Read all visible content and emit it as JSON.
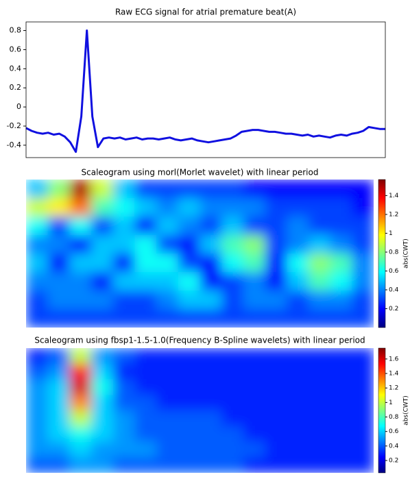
{
  "chart_data": [
    {
      "type": "line",
      "title": "Raw ECG signal for atrial premature beat(A)",
      "color": "#1010e0",
      "values": [
        -0.22,
        -0.25,
        -0.27,
        -0.28,
        -0.27,
        -0.29,
        -0.28,
        -0.31,
        -0.37,
        -0.47,
        -0.1,
        0.8,
        -0.1,
        -0.42,
        -0.33,
        -0.32,
        -0.33,
        -0.32,
        -0.34,
        -0.33,
        -0.32,
        -0.34,
        -0.33,
        -0.33,
        -0.34,
        -0.33,
        -0.32,
        -0.34,
        -0.35,
        -0.34,
        -0.33,
        -0.35,
        -0.36,
        -0.37,
        -0.36,
        -0.35,
        -0.34,
        -0.33,
        -0.3,
        -0.26,
        -0.25,
        -0.24,
        -0.24,
        -0.25,
        -0.26,
        -0.26,
        -0.27,
        -0.28,
        -0.28,
        -0.29,
        -0.3,
        -0.29,
        -0.31,
        -0.3,
        -0.31,
        -0.32,
        -0.3,
        -0.29,
        -0.3,
        -0.28,
        -0.27,
        -0.25,
        -0.21,
        -0.22,
        -0.23,
        -0.23
      ],
      "ylim": [
        -0.53,
        0.89
      ],
      "yticks": [
        -0.4,
        -0.2,
        0.0,
        0.2,
        0.4,
        0.6,
        0.8
      ]
    },
    {
      "type": "heatmap",
      "title": "Scaleogram using morl(Morlet wavelet) with linear period",
      "colormap": "jet",
      "colorbar_label": "abs(CWT)",
      "clim": [
        0,
        1.57
      ],
      "cticks": [
        0.2,
        0.4,
        0.6,
        0.8,
        1.0,
        1.2,
        1.4
      ],
      "z": [
        [
          0.5,
          0.8,
          1.5,
          0.9,
          0.5,
          0.3,
          0.3,
          0.3,
          0.3,
          0.3,
          0.2,
          0.2,
          0.2,
          0.2,
          0.2,
          0.2
        ],
        [
          0.9,
          1.0,
          1.2,
          0.7,
          0.6,
          0.5,
          0.4,
          0.5,
          0.4,
          0.4,
          0.4,
          0.3,
          0.3,
          0.3,
          0.3,
          0.2
        ],
        [
          0.6,
          0.3,
          0.6,
          0.3,
          0.5,
          0.2,
          0.5,
          0.4,
          0.3,
          0.5,
          0.3,
          0.3,
          0.4,
          0.3,
          0.3,
          0.3
        ],
        [
          0.4,
          0.4,
          0.2,
          0.5,
          0.5,
          0.6,
          0.3,
          0.2,
          0.5,
          0.7,
          0.8,
          0.3,
          0.4,
          0.5,
          0.4,
          0.3
        ],
        [
          0.5,
          0.2,
          0.5,
          0.5,
          0.2,
          0.6,
          0.6,
          0.3,
          0.2,
          0.6,
          0.7,
          0.2,
          0.6,
          0.8,
          0.7,
          0.4
        ],
        [
          0.4,
          0.4,
          0.4,
          0.2,
          0.5,
          0.5,
          0.5,
          0.6,
          0.2,
          0.3,
          0.4,
          0.2,
          0.5,
          0.7,
          0.6,
          0.4
        ],
        [
          0.3,
          0.4,
          0.4,
          0.4,
          0.3,
          0.3,
          0.4,
          0.5,
          0.5,
          0.3,
          0.4,
          0.4,
          0.3,
          0.4,
          0.4,
          0.3
        ],
        [
          0.3,
          0.3,
          0.3,
          0.3,
          0.3,
          0.3,
          0.3,
          0.3,
          0.3,
          0.3,
          0.3,
          0.3,
          0.3,
          0.3,
          0.3,
          0.3
        ]
      ]
    },
    {
      "type": "heatmap",
      "title": "Scaleogram using fbsp1-1.5-1.0(Frequency B-Spline wavelets) with linear period",
      "colormap": "jet",
      "colorbar_label": "abs(CWT)",
      "clim": [
        0.03,
        1.75
      ],
      "cticks": [
        0.2,
        0.4,
        0.6,
        0.8,
        1.0,
        1.2,
        1.4,
        1.6
      ],
      "z": [
        [
          0.3,
          0.4,
          1.0,
          0.5,
          0.4,
          0.3,
          0.3,
          0.3,
          0.3,
          0.3,
          0.3,
          0.3,
          0.3,
          0.3,
          0.3,
          0.3
        ],
        [
          0.4,
          0.5,
          1.5,
          0.6,
          0.3,
          0.3,
          0.3,
          0.3,
          0.3,
          0.3,
          0.3,
          0.3,
          0.3,
          0.3,
          0.3,
          0.3
        ],
        [
          0.5,
          0.6,
          1.6,
          0.7,
          0.4,
          0.3,
          0.3,
          0.3,
          0.3,
          0.3,
          0.3,
          0.3,
          0.3,
          0.3,
          0.3,
          0.3
        ],
        [
          0.5,
          0.6,
          1.3,
          0.6,
          0.4,
          0.4,
          0.3,
          0.3,
          0.3,
          0.3,
          0.3,
          0.3,
          0.3,
          0.3,
          0.3,
          0.3
        ],
        [
          0.5,
          0.6,
          1.0,
          0.6,
          0.5,
          0.4,
          0.4,
          0.4,
          0.4,
          0.3,
          0.3,
          0.3,
          0.3,
          0.3,
          0.3,
          0.3
        ],
        [
          0.5,
          0.6,
          0.7,
          0.6,
          0.5,
          0.4,
          0.4,
          0.4,
          0.4,
          0.4,
          0.3,
          0.3,
          0.3,
          0.3,
          0.3,
          0.3
        ],
        [
          0.5,
          0.5,
          0.6,
          0.5,
          0.5,
          0.5,
          0.4,
          0.4,
          0.4,
          0.4,
          0.4,
          0.3,
          0.3,
          0.3,
          0.3,
          0.3
        ],
        [
          0.4,
          0.4,
          0.5,
          0.5,
          0.4,
          0.4,
          0.4,
          0.4,
          0.4,
          0.4,
          0.3,
          0.3,
          0.3,
          0.3,
          0.3,
          0.3
        ]
      ]
    }
  ]
}
